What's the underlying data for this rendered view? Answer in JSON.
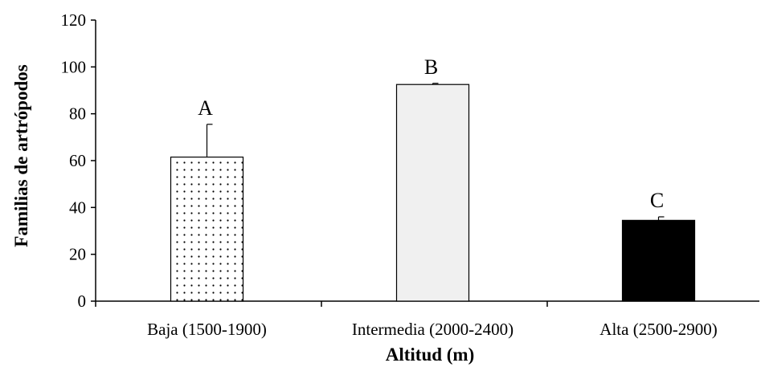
{
  "chart_data": {
    "type": "bar",
    "title": "",
    "xlabel": "Altitud  (m)",
    "ylabel": "Familias   de artrópodos",
    "ylim": [
      0,
      120
    ],
    "yticks": [
      0,
      20,
      40,
      60,
      80,
      100,
      120
    ],
    "categories": [
      "Baja (1500-1900)",
      "Intermedia (2000-2400)",
      "Alta (2500-2900)"
    ],
    "values": [
      61.5,
      92.5,
      34.5
    ],
    "errors": [
      14,
      0.5,
      1.5
    ],
    "letters": [
      "A",
      "B",
      "C"
    ],
    "fills": [
      "dotted",
      "#f0f0f0",
      "#000000"
    ],
    "grid": false,
    "legend": "none"
  }
}
